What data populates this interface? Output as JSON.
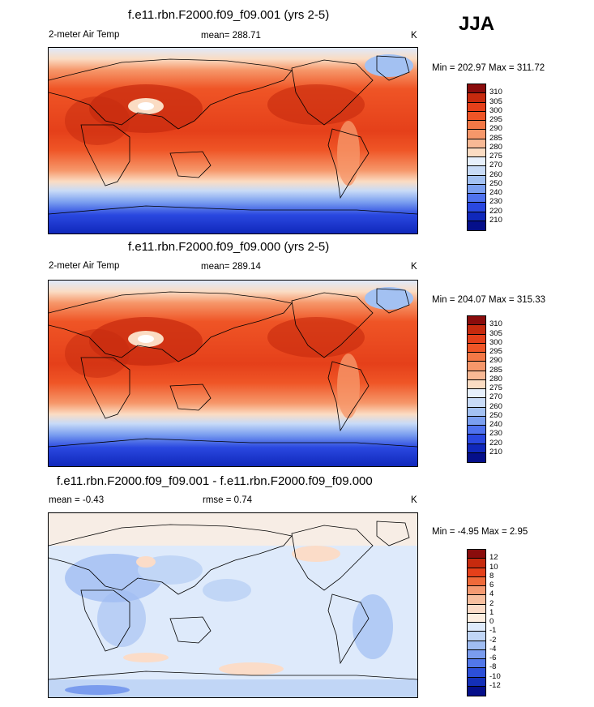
{
  "season": "JJA",
  "panels": [
    {
      "title": "f.e11.rbn.F2000.f09_f09.001 (yrs 2-5)",
      "left_label": "2-meter Air Temp",
      "center_label": "mean= 288.71",
      "units": "K",
      "minmax": "Min = 202.97 Max = 311.72"
    },
    {
      "title": "f.e11.rbn.F2000.f09_f09.000 (yrs 2-5)",
      "left_label": "2-meter Air Temp",
      "center_label": "mean= 289.14",
      "units": "K",
      "minmax": "Min = 204.07 Max = 315.33"
    },
    {
      "title": "f.e11.rbn.F2000.f09_f09.001 - f.e11.rbn.F2000.f09_f09.000",
      "left_label": "mean =  -0.43",
      "center_label": "rmse =   0.74",
      "units": "K",
      "minmax": "Min =  -4.95 Max =   2.95"
    }
  ],
  "temp_legend": {
    "labels": [
      "310",
      "305",
      "300",
      "295",
      "290",
      "285",
      "280",
      "275",
      "270",
      "260",
      "250",
      "240",
      "230",
      "220",
      "210"
    ],
    "colors": [
      "#8a0c0c",
      "#c62a0e",
      "#e5401a",
      "#ef5526",
      "#f37846",
      "#f6976a",
      "#f8b995",
      "#fbdcc3",
      "#e7f0fc",
      "#c8dbf7",
      "#a3c1f2",
      "#7b9ff0",
      "#4f72ee",
      "#2a48e0",
      "#1028bb",
      "#050f8a"
    ]
  },
  "diff_legend": {
    "labels": [
      "12",
      "10",
      "8",
      "6",
      "4",
      "2",
      "1",
      "0",
      "-1",
      "-2",
      "-4",
      "-6",
      "-8",
      "-10",
      "-12"
    ],
    "colors": [
      "#8a0c0c",
      "#c62a0e",
      "#e5401a",
      "#ef6a3a",
      "#f49a72",
      "#f7bf9f",
      "#fbdcc8",
      "#fdeee0",
      "#deeafb",
      "#c1d6f6",
      "#a0bdf2",
      "#7a9cee",
      "#5278ea",
      "#2c4fd8",
      "#1430b8",
      "#050f8a"
    ]
  }
}
